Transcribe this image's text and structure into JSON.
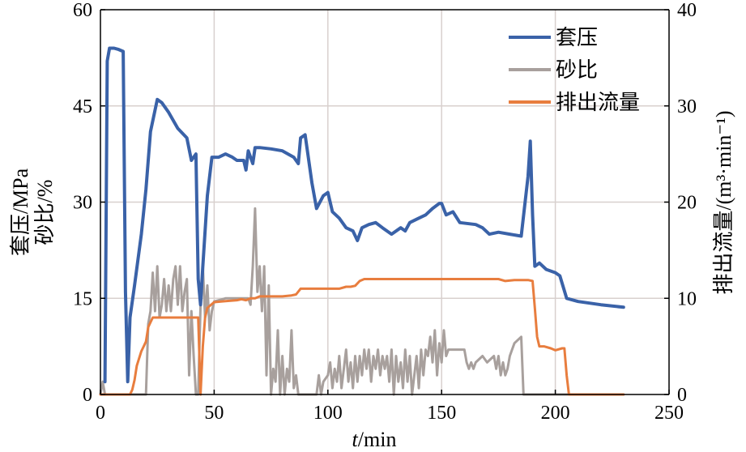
{
  "chart_data": {
    "type": "line",
    "xlabel_italic": "t",
    "xlabel_rest": "/min",
    "ylabel_left_line1": "套压/MPa",
    "ylabel_left_line2": "砂比/%",
    "ylabel_right": "排出流量/(m³·min⁻¹)",
    "xlim": [
      0,
      250
    ],
    "ylim_left": [
      0,
      60
    ],
    "ylim_right": [
      0,
      40
    ],
    "x_ticks": [
      0,
      50,
      100,
      150,
      200,
      250
    ],
    "y_left_ticks": [
      0,
      15,
      30,
      45,
      60
    ],
    "y_right_ticks": [
      0,
      10,
      20,
      30,
      40
    ],
    "grid": true,
    "legend_position": "top-right",
    "series": [
      {
        "name": "套压",
        "axis": "left",
        "color": "#3a62a8",
        "points": [
          [
            2,
            2
          ],
          [
            3,
            52
          ],
          [
            4,
            54
          ],
          [
            6,
            54
          ],
          [
            8,
            53.8
          ],
          [
            10,
            53.5
          ],
          [
            11,
            16
          ],
          [
            12,
            2
          ],
          [
            13,
            12
          ],
          [
            15,
            17
          ],
          [
            18,
            25
          ],
          [
            20,
            32
          ],
          [
            22,
            41
          ],
          [
            25,
            46
          ],
          [
            27,
            45.5
          ],
          [
            30,
            44
          ],
          [
            34,
            41.5
          ],
          [
            38,
            40
          ],
          [
            40,
            36.5
          ],
          [
            42,
            37.5
          ],
          [
            43,
            18
          ],
          [
            44,
            14
          ],
          [
            45,
            20
          ],
          [
            47,
            31
          ],
          [
            49,
            37
          ],
          [
            52,
            37
          ],
          [
            55,
            37.5
          ],
          [
            58,
            37
          ],
          [
            60,
            36.5
          ],
          [
            63,
            36.5
          ],
          [
            64,
            35
          ],
          [
            65,
            38
          ],
          [
            67,
            36
          ],
          [
            68,
            38.5
          ],
          [
            70,
            38.5
          ],
          [
            75,
            38.3
          ],
          [
            80,
            38
          ],
          [
            85,
            37
          ],
          [
            87,
            36
          ],
          [
            88,
            40
          ],
          [
            90,
            40.5
          ],
          [
            93,
            33
          ],
          [
            95,
            29
          ],
          [
            98,
            31
          ],
          [
            100,
            31.5
          ],
          [
            102,
            28.5
          ],
          [
            105,
            27.5
          ],
          [
            108,
            26
          ],
          [
            111,
            25.5
          ],
          [
            113,
            24
          ],
          [
            115,
            26
          ],
          [
            118,
            26.5
          ],
          [
            121,
            26.8
          ],
          [
            124,
            26
          ],
          [
            128,
            25
          ],
          [
            132,
            26
          ],
          [
            134,
            25.5
          ],
          [
            136,
            26.8
          ],
          [
            140,
            27.5
          ],
          [
            143,
            28
          ],
          [
            146,
            29
          ],
          [
            149,
            29.8
          ],
          [
            150,
            29.8
          ],
          [
            152,
            28
          ],
          [
            155,
            28.5
          ],
          [
            158,
            26.8
          ],
          [
            165,
            26.5
          ],
          [
            168,
            26
          ],
          [
            171,
            25
          ],
          [
            175,
            25.3
          ],
          [
            180,
            25
          ],
          [
            185,
            24.7
          ],
          [
            188,
            34
          ],
          [
            189,
            39.5
          ],
          [
            190,
            28
          ],
          [
            191,
            20
          ],
          [
            193,
            20.5
          ],
          [
            196,
            19.5
          ],
          [
            200,
            19
          ],
          [
            202,
            18.5
          ],
          [
            205,
            15
          ],
          [
            210,
            14.5
          ],
          [
            220,
            14
          ],
          [
            230,
            13.6
          ]
        ]
      },
      {
        "name": "砂比",
        "axis": "left",
        "color": "#a8a09d",
        "points": [
          [
            0,
            0
          ],
          [
            1,
            2
          ],
          [
            2,
            0
          ],
          [
            20,
            0
          ],
          [
            21,
            11
          ],
          [
            22,
            13
          ],
          [
            23,
            19
          ],
          [
            24,
            13
          ],
          [
            25,
            20
          ],
          [
            26,
            12
          ],
          [
            27,
            14
          ],
          [
            28,
            18
          ],
          [
            29,
            13
          ],
          [
            30,
            17
          ],
          [
            31,
            13
          ],
          [
            32,
            18
          ],
          [
            33,
            20
          ],
          [
            34,
            14
          ],
          [
            35,
            20
          ],
          [
            36,
            13
          ],
          [
            37,
            16
          ],
          [
            38,
            18
          ],
          [
            39,
            3
          ],
          [
            40,
            13
          ],
          [
            41,
            6
          ],
          [
            42,
            0
          ],
          [
            43,
            0
          ],
          [
            44,
            14
          ],
          [
            45,
            20
          ],
          [
            46,
            12
          ],
          [
            47,
            17
          ],
          [
            48,
            10
          ],
          [
            49,
            13
          ],
          [
            50,
            14.5
          ],
          [
            55,
            15
          ],
          [
            60,
            15
          ],
          [
            65,
            15
          ],
          [
            66,
            14
          ],
          [
            67,
            20
          ],
          [
            68,
            29
          ],
          [
            69,
            16
          ],
          [
            70,
            20
          ],
          [
            71,
            13
          ],
          [
            72,
            20
          ],
          [
            73,
            3
          ],
          [
            74,
            17
          ],
          [
            75,
            0
          ],
          [
            76,
            4
          ],
          [
            77,
            2
          ],
          [
            78,
            10
          ],
          [
            79,
            0
          ],
          [
            80,
            6
          ],
          [
            81,
            0
          ],
          [
            82,
            4
          ],
          [
            83,
            2
          ],
          [
            84,
            10
          ],
          [
            85,
            1
          ],
          [
            86,
            3
          ],
          [
            87,
            0
          ],
          [
            95,
            0
          ],
          [
            96,
            3
          ],
          [
            97,
            0
          ],
          [
            98,
            2
          ],
          [
            100,
            3
          ],
          [
            101,
            5
          ],
          [
            102,
            1
          ],
          [
            103,
            4
          ],
          [
            104,
            2
          ],
          [
            105,
            6
          ],
          [
            106,
            1
          ],
          [
            107,
            4
          ],
          [
            108,
            7
          ],
          [
            109,
            2
          ],
          [
            110,
            5
          ],
          [
            111,
            1
          ],
          [
            112,
            6
          ],
          [
            113,
            2
          ],
          [
            114,
            6
          ],
          [
            115,
            3
          ],
          [
            116,
            7
          ],
          [
            117,
            4
          ],
          [
            118,
            7
          ],
          [
            119,
            2
          ],
          [
            120,
            6
          ],
          [
            121,
            4
          ],
          [
            122,
            7
          ],
          [
            123,
            3
          ],
          [
            124,
            6
          ],
          [
            125,
            4
          ],
          [
            126,
            6
          ],
          [
            127,
            2
          ],
          [
            128,
            7
          ],
          [
            129,
            0
          ],
          [
            130,
            6
          ],
          [
            131,
            2
          ],
          [
            132,
            5
          ],
          [
            133,
            1
          ],
          [
            134,
            7
          ],
          [
            135,
            2
          ],
          [
            136,
            6
          ],
          [
            137,
            0
          ],
          [
            138,
            3
          ],
          [
            139,
            6
          ],
          [
            140,
            1
          ],
          [
            141,
            7
          ],
          [
            142,
            3
          ],
          [
            143,
            7
          ],
          [
            144,
            6
          ],
          [
            145,
            9
          ],
          [
            146,
            5
          ],
          [
            147,
            10
          ],
          [
            148,
            3
          ],
          [
            149,
            8
          ],
          [
            150,
            5
          ],
          [
            151,
            10
          ],
          [
            152,
            6
          ],
          [
            153,
            7
          ],
          [
            155,
            7
          ],
          [
            160,
            7
          ],
          [
            161,
            5
          ],
          [
            162,
            4
          ],
          [
            163,
            5
          ],
          [
            164,
            4
          ],
          [
            165,
            5
          ],
          [
            168,
            6
          ],
          [
            170,
            5
          ],
          [
            173,
            6
          ],
          [
            174,
            4
          ],
          [
            175,
            6
          ],
          [
            176,
            3
          ],
          [
            177,
            5
          ],
          [
            178,
            3
          ],
          [
            179,
            4
          ],
          [
            180,
            6
          ],
          [
            181,
            7
          ],
          [
            182,
            8
          ],
          [
            185,
            9
          ],
          [
            186,
            0
          ],
          [
            230,
            0
          ]
        ]
      },
      {
        "name": "排出流量",
        "axis": "right",
        "color": "#e87d3e",
        "points": [
          [
            0,
            0
          ],
          [
            5,
            0
          ],
          [
            10,
            0
          ],
          [
            13,
            0
          ],
          [
            14,
            0.5
          ],
          [
            15,
            1.5
          ],
          [
            16,
            3
          ],
          [
            18,
            4.5
          ],
          [
            19,
            5
          ],
          [
            20,
            5.5
          ],
          [
            21,
            7
          ],
          [
            22,
            7.5
          ],
          [
            23,
            8
          ],
          [
            25,
            8
          ],
          [
            30,
            8
          ],
          [
            35,
            8
          ],
          [
            40,
            8
          ],
          [
            42,
            8
          ],
          [
            43,
            8
          ],
          [
            44,
            0
          ],
          [
            45,
            5
          ],
          [
            46,
            8
          ],
          [
            47,
            9
          ],
          [
            50,
            9.6
          ],
          [
            55,
            9.7
          ],
          [
            60,
            9.8
          ],
          [
            62,
            9.9
          ],
          [
            64,
            9.8
          ],
          [
            66,
            10
          ],
          [
            68,
            10
          ],
          [
            70,
            10.2
          ],
          [
            75,
            10.2
          ],
          [
            80,
            10.2
          ],
          [
            84,
            10.3
          ],
          [
            86,
            10.4
          ],
          [
            88,
            11
          ],
          [
            90,
            11
          ],
          [
            95,
            11
          ],
          [
            100,
            11
          ],
          [
            105,
            11
          ],
          [
            108,
            11.2
          ],
          [
            110,
            11.2
          ],
          [
            112,
            11.3
          ],
          [
            114,
            11.8
          ],
          [
            116,
            12
          ],
          [
            120,
            12
          ],
          [
            125,
            12
          ],
          [
            130,
            12
          ],
          [
            135,
            12
          ],
          [
            140,
            12
          ],
          [
            145,
            12
          ],
          [
            150,
            12
          ],
          [
            155,
            12
          ],
          [
            160,
            12
          ],
          [
            165,
            12
          ],
          [
            170,
            12
          ],
          [
            175,
            12
          ],
          [
            178,
            11.8
          ],
          [
            182,
            11.9
          ],
          [
            188,
            11.9
          ],
          [
            190,
            11.8
          ],
          [
            191,
            9
          ],
          [
            192,
            6
          ],
          [
            193,
            5
          ],
          [
            195,
            5
          ],
          [
            198,
            4.8
          ],
          [
            200,
            4.6
          ],
          [
            203,
            4.8
          ],
          [
            204,
            4.8
          ],
          [
            205,
            2
          ],
          [
            206,
            0
          ],
          [
            210,
            0
          ],
          [
            220,
            0
          ],
          [
            230,
            0
          ]
        ]
      }
    ]
  }
}
